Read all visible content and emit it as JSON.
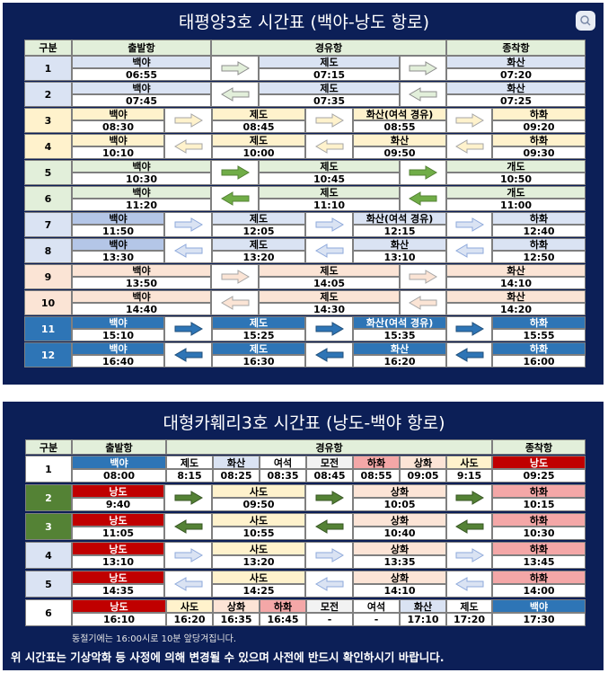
{
  "table1": {
    "title": "태평양3호  시간표 (백야-낭도 항로)",
    "headers": [
      "구분",
      "출발항",
      "경유항",
      "종착항"
    ],
    "rows": [
      {
        "no": "1",
        "num_bg": "#dae3f3",
        "name_bg": "#dae3f3",
        "arrow_fill": "#e2efda",
        "arrow_stroke": "#8c8c8c",
        "arrows": [
          "right",
          "right"
        ],
        "stops": [
          {
            "name": "백야",
            "time": "06:55"
          },
          {
            "name": "제도",
            "time": "07:15"
          },
          {
            "name": "화산",
            "time": "07:20"
          }
        ]
      },
      {
        "no": "2",
        "num_bg": "#dae3f3",
        "name_bg": "#dae3f3",
        "arrow_fill": "#e2efda",
        "arrow_stroke": "#8c8c8c",
        "arrows": [
          "left",
          "left"
        ],
        "stops": [
          {
            "name": "백야",
            "time": "07:45"
          },
          {
            "name": "제도",
            "time": "07:35"
          },
          {
            "name": "화산",
            "time": "07:25"
          }
        ]
      },
      {
        "no": "3",
        "num_bg": "#fff2cc",
        "name_bg": "#fff2cc",
        "arrow_fill": "#fff2cc",
        "arrow_stroke": "#a6a6a6",
        "arrows": [
          "right",
          "right",
          "right"
        ],
        "stops": [
          {
            "name": "백야",
            "time": "08:30"
          },
          {
            "name": "제도",
            "time": "08:45"
          },
          {
            "name": "화산(여석 경유)",
            "time": "08:55"
          },
          {
            "name": "하화",
            "time": "09:20"
          }
        ]
      },
      {
        "no": "4",
        "num_bg": "#fff2cc",
        "name_bg": "#fff2cc",
        "arrow_fill": "#fff2cc",
        "arrow_stroke": "#a6a6a6",
        "arrows": [
          "left",
          "left",
          "left"
        ],
        "stops": [
          {
            "name": "백야",
            "time": "10:10"
          },
          {
            "name": "제도",
            "time": "10:00"
          },
          {
            "name": "화산",
            "time": "09:50"
          },
          {
            "name": "하화",
            "time": "09:30"
          }
        ]
      },
      {
        "no": "5",
        "num_bg": "#e2efda",
        "name_bg": "#e2efda",
        "arrow_fill": "#70ad47",
        "arrow_stroke": "#548235",
        "arrows": [
          "right",
          "right"
        ],
        "stops": [
          {
            "name": "백야",
            "time": "10:30"
          },
          {
            "name": "제도",
            "time": "10:45"
          },
          {
            "name": "개도",
            "time": "10:50"
          }
        ]
      },
      {
        "no": "6",
        "num_bg": "#e2efda",
        "name_bg": "#e2efda",
        "arrow_fill": "#70ad47",
        "arrow_stroke": "#548235",
        "arrows": [
          "left",
          "left"
        ],
        "stops": [
          {
            "name": "백야",
            "time": "11:20"
          },
          {
            "name": "제도",
            "time": "11:10"
          },
          {
            "name": "개도",
            "time": "11:00"
          }
        ]
      },
      {
        "no": "7",
        "num_bg": "#dae3f3",
        "name_bg": "#dae3f3",
        "arrow_fill": "#dae3f3",
        "arrow_stroke": "#8ea9db",
        "arrows": [
          "right",
          "right",
          "right"
        ],
        "stops": [
          {
            "name": "백야",
            "time": "11:50",
            "bg": "#b4c6e7"
          },
          {
            "name": "제도",
            "time": "12:05"
          },
          {
            "name": "화산(여석 경유)",
            "time": "12:15"
          },
          {
            "name": "하화",
            "time": "12:40"
          }
        ]
      },
      {
        "no": "8",
        "num_bg": "#dae3f3",
        "name_bg": "#dae3f3",
        "arrow_fill": "#dae3f3",
        "arrow_stroke": "#8ea9db",
        "arrows": [
          "left",
          "left",
          "left"
        ],
        "stops": [
          {
            "name": "백야",
            "time": "13:30",
            "bg": "#b4c6e7"
          },
          {
            "name": "제도",
            "time": "13:20"
          },
          {
            "name": "화산",
            "time": "13:10"
          },
          {
            "name": "하화",
            "time": "12:50"
          }
        ]
      },
      {
        "no": "9",
        "num_bg": "#fbe4d5",
        "name_bg": "#fbe4d5",
        "arrow_fill": "#fbe4d5",
        "arrow_stroke": "#a6a6a6",
        "arrows": [
          "right",
          "right"
        ],
        "stops": [
          {
            "name": "백야",
            "time": "13:50"
          },
          {
            "name": "제도",
            "time": "14:05"
          },
          {
            "name": "화산",
            "time": "14:10"
          }
        ]
      },
      {
        "no": "10",
        "num_bg": "#fbe4d5",
        "name_bg": "#fbe4d5",
        "arrow_fill": "#fbe4d5",
        "arrow_stroke": "#a6a6a6",
        "arrows": [
          "left",
          "left"
        ],
        "stops": [
          {
            "name": "백야",
            "time": "14:40"
          },
          {
            "name": "제도",
            "time": "14:30"
          },
          {
            "name": "화산",
            "time": "14:20"
          }
        ]
      },
      {
        "no": "11",
        "num_bg": "#2e75b6",
        "num_fg": "#ffffff",
        "name_bg": "#2e75b6",
        "name_fg": "#ffffff",
        "arrow_fill": "#2e75b6",
        "arrow_stroke": "#1f4e79",
        "arrows": [
          "right",
          "right",
          "right"
        ],
        "stops": [
          {
            "name": "백야",
            "time": "15:10"
          },
          {
            "name": "제도",
            "time": "15:25"
          },
          {
            "name": "화산(여석 경유)",
            "time": "15:35"
          },
          {
            "name": "하화",
            "time": "15:55"
          }
        ]
      },
      {
        "no": "12",
        "num_bg": "#2e75b6",
        "num_fg": "#ffffff",
        "name_bg": "#2e75b6",
        "name_fg": "#ffffff",
        "arrow_fill": "#2e75b6",
        "arrow_stroke": "#1f4e79",
        "arrows": [
          "left",
          "left",
          "left"
        ],
        "stops": [
          {
            "name": "백야",
            "time": "16:40"
          },
          {
            "name": "제도",
            "time": "16:30"
          },
          {
            "name": "화산",
            "time": "16:20"
          },
          {
            "name": "하화",
            "time": "16:00"
          }
        ]
      }
    ]
  },
  "table2": {
    "title": "대형카훼리3호 시간표 (낭도-백야 항로)",
    "headers": [
      "구분",
      "출발항",
      "경유항",
      "종착항"
    ],
    "rows": [
      {
        "no": "1",
        "num_bg": "#ffffff",
        "name_bg": "#ffffff",
        "arrows": [],
        "stops": [
          {
            "name": "백야",
            "time": "08:00",
            "bg": "#2e75b6",
            "fg": "#ffffff"
          },
          {
            "name": "제도",
            "time": "8:15"
          },
          {
            "name": "화산",
            "time": "08:25",
            "bg": "#dae3f3"
          },
          {
            "name": "여석",
            "time": "08:35"
          },
          {
            "name": "모전",
            "time": "08:45",
            "bg": "#f2f2f2"
          },
          {
            "name": "하화",
            "time": "08:55",
            "bg": "#f4a7a7"
          },
          {
            "name": "상화",
            "time": "09:05",
            "bg": "#fce4d6"
          },
          {
            "name": "사도",
            "time": "9:15",
            "bg": "#fff2cc"
          },
          {
            "name": "낭도",
            "time": "09:25",
            "bg": "#c00000",
            "fg": "#ffffff"
          }
        ]
      },
      {
        "no": "2",
        "num_bg": "#548235",
        "num_fg": "#ffffff",
        "name_bg": "#ffffff",
        "arrow_fill": "#548235",
        "arrow_stroke": "#375623",
        "arrows": [
          "right",
          "right",
          "right"
        ],
        "stops": [
          {
            "name": "낭도",
            "time": "9:40",
            "bg": "#c00000",
            "fg": "#ffffff"
          },
          {
            "name": "사도",
            "time": "09:50",
            "bg": "#fff2cc"
          },
          {
            "name": "상화",
            "time": "10:05",
            "bg": "#fce4d6"
          },
          {
            "name": "하화",
            "time": "10:15",
            "bg": "#f4a7a7"
          }
        ]
      },
      {
        "no": "3",
        "num_bg": "#548235",
        "num_fg": "#ffffff",
        "name_bg": "#ffffff",
        "arrow_fill": "#548235",
        "arrow_stroke": "#375623",
        "arrows": [
          "left",
          "left",
          "left"
        ],
        "stops": [
          {
            "name": "낭도",
            "time": "11:05",
            "bg": "#c00000",
            "fg": "#ffffff"
          },
          {
            "name": "사도",
            "time": "10:55",
            "bg": "#fff2cc"
          },
          {
            "name": "상화",
            "time": "10:40",
            "bg": "#fce4d6"
          },
          {
            "name": "하화",
            "time": "10:30",
            "bg": "#f4a7a7"
          }
        ]
      },
      {
        "no": "4",
        "num_bg": "#dae3f3",
        "name_bg": "#ffffff",
        "arrow_fill": "#dae3f3",
        "arrow_stroke": "#8ea9db",
        "arrows": [
          "right",
          "right",
          "right"
        ],
        "stops": [
          {
            "name": "낭도",
            "time": "13:10",
            "bg": "#c00000",
            "fg": "#ffffff"
          },
          {
            "name": "사도",
            "time": "13:20",
            "bg": "#fff2cc"
          },
          {
            "name": "상화",
            "time": "13:35",
            "bg": "#fce4d6"
          },
          {
            "name": "하화",
            "time": "13:45",
            "bg": "#f4a7a7"
          }
        ]
      },
      {
        "no": "5",
        "num_bg": "#dae3f3",
        "name_bg": "#ffffff",
        "arrow_fill": "#dae3f3",
        "arrow_stroke": "#8ea9db",
        "arrows": [
          "left",
          "left",
          "left"
        ],
        "stops": [
          {
            "name": "낭도",
            "time": "14:35",
            "bg": "#c00000",
            "fg": "#ffffff"
          },
          {
            "name": "사도",
            "time": "14:25",
            "bg": "#fff2cc"
          },
          {
            "name": "상화",
            "time": "14:10",
            "bg": "#fce4d6"
          },
          {
            "name": "하화",
            "time": "14:00",
            "bg": "#f4a7a7"
          }
        ]
      },
      {
        "no": "6",
        "num_bg": "#ffffff",
        "name_bg": "#ffffff",
        "arrows": [],
        "stops": [
          {
            "name": "낭도",
            "time": "16:10",
            "bg": "#c00000",
            "fg": "#ffffff"
          },
          {
            "name": "사도",
            "time": "16:20",
            "bg": "#fff2cc"
          },
          {
            "name": "상화",
            "time": "16:35",
            "bg": "#fce4d6"
          },
          {
            "name": "하화",
            "time": "16:45",
            "bg": "#f4a7a7"
          },
          {
            "name": "모전",
            "time": "-",
            "bg": "#f2f2f2"
          },
          {
            "name": "여석",
            "time": "-"
          },
          {
            "name": "화산",
            "time": "17:10",
            "bg": "#dae3f3"
          },
          {
            "name": "제도",
            "time": "17:20"
          },
          {
            "name": "백야",
            "time": "17:30",
            "bg": "#2e75b6",
            "fg": "#ffffff"
          }
        ]
      }
    ]
  },
  "note": "동절기에는 16:00시로 10분 앞당겨집니다.",
  "footer": "위 시간표는 기상악화 등 사정에 의해 변경될 수 있으며 사전에 반드시 확인하시기 바랍니다."
}
